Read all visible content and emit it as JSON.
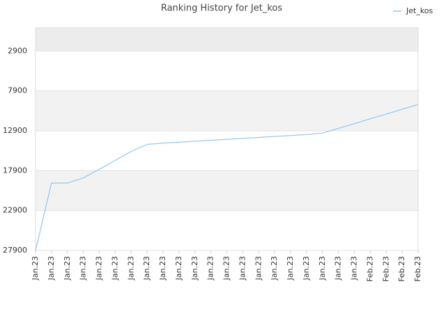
{
  "chart_data": {
    "type": "line",
    "title": "Ranking History for Jet_kos",
    "categories": [
      "Jan.23",
      "Jan.23",
      "Jan.23",
      "Jan.23",
      "Jan.23",
      "Jan.23",
      "Jan.23",
      "Jan.23",
      "Jan.23",
      "Jan.23",
      "Jan.23",
      "Jan.23",
      "Jan.23",
      "Jan.23",
      "Jan.23",
      "Jan.23",
      "Jan.23",
      "Jan.23",
      "Jan.23",
      "Jan.23",
      "Jan.23",
      "Feb.23",
      "Feb.23",
      "Feb.23",
      "Feb.23"
    ],
    "series": [
      {
        "name": "Jet_kos",
        "color": "#99c9ee",
        "values": [
          27900,
          19450,
          19450,
          18800,
          17730,
          16600,
          15480,
          14600,
          14450,
          14330,
          14210,
          14090,
          13970,
          13850,
          13730,
          13610,
          13490,
          13370,
          13200,
          12600,
          12000,
          11400,
          10800,
          10200,
          9600
        ]
      }
    ],
    "ylim": [
      0,
      27900
    ],
    "y_inverted": true,
    "yticks": [
      2900,
      7900,
      12900,
      17900,
      22900,
      27900
    ],
    "grid": true,
    "legend": "top-right"
  }
}
